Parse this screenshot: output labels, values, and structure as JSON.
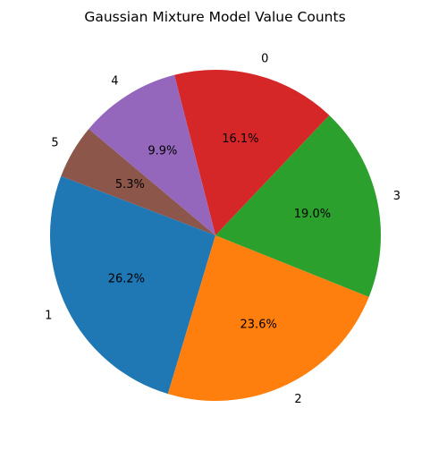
{
  "chart_data": {
    "type": "pie",
    "title": "Gaussian Mixture Model Value Counts",
    "start_angle_deg": 140,
    "direction": "counterclockwise",
    "slices": [
      {
        "label": "0",
        "percent": 16.1,
        "percent_label": "16.1%",
        "color": "#d62728"
      },
      {
        "label": "1",
        "percent": 26.2,
        "percent_label": "26.2%",
        "color": "#1f77b4"
      },
      {
        "label": "2",
        "percent": 23.6,
        "percent_label": "23.6%",
        "color": "#ff7f0e"
      },
      {
        "label": "3",
        "percent": 19.0,
        "percent_label": "19.0%",
        "color": "#2ca02c"
      },
      {
        "label": "4",
        "percent": 9.9,
        "percent_label": "9.9%",
        "color": "#9467bd"
      },
      {
        "label": "5",
        "percent": 5.3,
        "percent_label": "5.3%",
        "color": "#8c564b"
      }
    ],
    "slice_order": [
      "5",
      "1",
      "2",
      "3",
      "0",
      "4"
    ],
    "legend": false
  }
}
